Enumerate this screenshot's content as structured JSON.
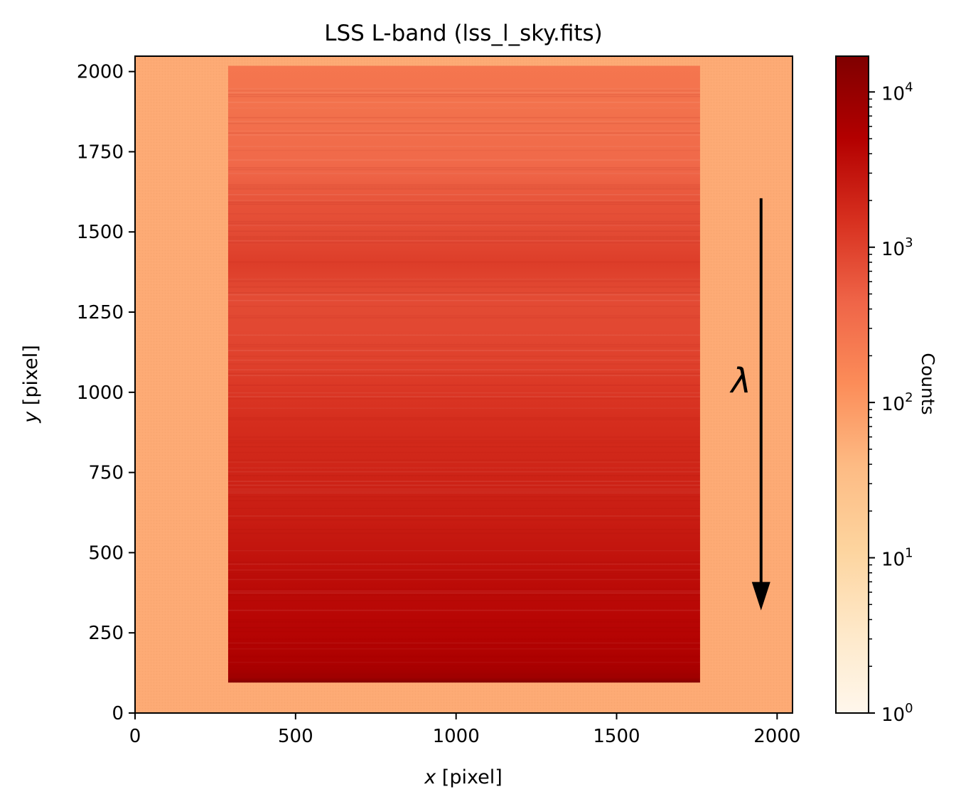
{
  "chart_data": {
    "type": "heatmap",
    "title": "LSS L-band (lss_l_sky.fits)",
    "xlabel": {
      "var": "x",
      "unit": " [pixel]"
    },
    "ylabel": {
      "var": "y",
      "unit": " [pixel]"
    },
    "xlim": [
      0,
      2048
    ],
    "ylim": [
      0,
      2048
    ],
    "xticks": [
      0,
      500,
      1000,
      1500,
      2000
    ],
    "yticks": [
      0,
      250,
      500,
      750,
      1000,
      1250,
      1500,
      1750,
      2000
    ],
    "colormap": "OrRd",
    "colormap_stops": [
      "#fff7ec",
      "#fee8c8",
      "#fdd49e",
      "#fdbb84",
      "#fc8d59",
      "#ef6548",
      "#d7301f",
      "#b30000",
      "#7f0000"
    ],
    "colorbar": {
      "label": "Counts",
      "scale": "log",
      "range": [
        1,
        17000
      ],
      "major_ticks": [
        {
          "value": 1,
          "base": "10",
          "exp": "0"
        },
        {
          "value": 10,
          "base": "10",
          "exp": "1"
        },
        {
          "value": 100,
          "base": "10",
          "exp": "2"
        },
        {
          "value": 1000,
          "base": "10",
          "exp": "3"
        },
        {
          "value": 10000,
          "base": "10",
          "exp": "4"
        }
      ]
    },
    "background_counts": 60,
    "spectrum_region": {
      "x_range": [
        290,
        1760
      ],
      "y_range": [
        95,
        2018
      ]
    },
    "spectrum_profile": [
      {
        "y": 95,
        "counts": 15000
      },
      {
        "y": 110,
        "counts": 8000
      },
      {
        "y": 150,
        "counts": 6000
      },
      {
        "y": 250,
        "counts": 4500
      },
      {
        "y": 400,
        "counts": 3800
      },
      {
        "y": 500,
        "counts": 3000
      },
      {
        "y": 600,
        "counts": 2500
      },
      {
        "y": 750,
        "counts": 2000
      },
      {
        "y": 900,
        "counts": 1600
      },
      {
        "y": 1000,
        "counts": 1300
      },
      {
        "y": 1100,
        "counts": 1000
      },
      {
        "y": 1200,
        "counts": 850
      },
      {
        "y": 1300,
        "counts": 800
      },
      {
        "y": 1400,
        "counts": 1100
      },
      {
        "y": 1500,
        "counts": 800
      },
      {
        "y": 1580,
        "counts": 700
      },
      {
        "y": 1700,
        "counts": 400
      },
      {
        "y": 1850,
        "counts": 320
      },
      {
        "y": 2018,
        "counts": 260
      }
    ],
    "annotation": {
      "text": "λ",
      "arrow": {
        "x": 1950,
        "y_start": 1605,
        "y_end": 320
      }
    }
  }
}
